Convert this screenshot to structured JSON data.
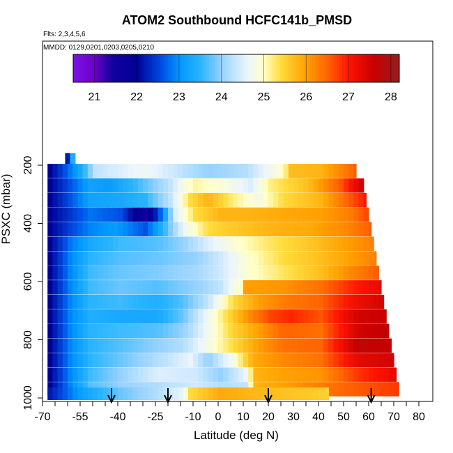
{
  "chart_data": {
    "type": "heatmap",
    "title": "ATOM2 Southbound HCFC141b_PMSD",
    "subtitle_flights": "Flts: 2,3,4,5,6",
    "subtitle_dates": "MMDD: 0129,0201,0203,0205,0210",
    "xlabel": "Latitude (deg N)",
    "ylabel": "PSXC (mbar)",
    "xlim": [
      -70,
      80
    ],
    "ylim": [
      1000,
      0
    ],
    "x_tick_labels": [
      "-70",
      "-55",
      "-40",
      "-25",
      "-10",
      "0",
      "10",
      "20",
      "30",
      "40",
      "50",
      "60",
      "70",
      "80"
    ],
    "x_tick_values": [
      -70,
      -55,
      -40,
      -25,
      -10,
      0,
      10,
      20,
      30,
      40,
      50,
      60,
      70,
      80
    ],
    "y_tick_values": [
      200,
      400,
      600,
      800,
      1000
    ],
    "y_tick_labels": [
      "200",
      "400",
      "600",
      "800",
      "1000"
    ],
    "colorbar": {
      "range": [
        20.5,
        28.2
      ],
      "tick_values": [
        21,
        22,
        23,
        24,
        25,
        26,
        27,
        28
      ],
      "tick_labels": [
        "21",
        "22",
        "23",
        "24",
        "25",
        "26",
        "27",
        "28"
      ],
      "colors": [
        "#6a0dd6",
        "#00008b",
        "#1e90ff",
        "#ffffff",
        "#ffd700",
        "#ff8c00",
        "#ff0000",
        "#8b1a1a"
      ]
    },
    "profile_latitudes": [
      -42.5,
      -20,
      20,
      61
    ],
    "layers": [
      {
        "p": 180,
        "x0": -61,
        "x1": -57,
        "segs": [
          [
            -61,
            22.2
          ],
          [
            -59,
            23.4
          ],
          [
            -57,
            24.8
          ]
        ]
      },
      {
        "p": 220,
        "x0": -68,
        "x1": 55,
        "segs": [
          [
            -68,
            22.0
          ],
          [
            -62,
            22.6
          ],
          [
            -55,
            23.4
          ],
          [
            -50,
            24.3
          ],
          [
            -40,
            24.5
          ],
          [
            -30,
            24.7
          ],
          [
            -16,
            24.3
          ],
          [
            -5,
            24.0
          ],
          [
            10,
            24.2
          ],
          [
            25,
            25.0
          ],
          [
            28,
            25.7
          ],
          [
            40,
            25.8
          ],
          [
            55,
            26.6
          ]
        ]
      },
      {
        "p": 270,
        "x0": -68,
        "x1": 58,
        "segs": [
          [
            -68,
            22.0
          ],
          [
            -60,
            22.6
          ],
          [
            -52,
            23.2
          ],
          [
            -45,
            23.1
          ],
          [
            -35,
            23.5
          ],
          [
            -20,
            24.3
          ],
          [
            -15,
            24.8
          ],
          [
            -10,
            25.1
          ],
          [
            0,
            24.9
          ],
          [
            12,
            24.5
          ],
          [
            20,
            25.2
          ],
          [
            35,
            25.7
          ],
          [
            48,
            26.6
          ],
          [
            56,
            27.5
          ]
        ]
      },
      {
        "p": 320,
        "x0": -68,
        "x1": 59,
        "segs": [
          [
            -68,
            22.0
          ],
          [
            -60,
            22.6
          ],
          [
            -52,
            23.2
          ],
          [
            -40,
            23.3
          ],
          [
            -30,
            23.5
          ],
          [
            -20,
            24.3
          ],
          [
            -12,
            25.4
          ],
          [
            -5,
            25.8
          ],
          [
            5,
            25.2
          ],
          [
            15,
            24.8
          ],
          [
            25,
            25.4
          ],
          [
            40,
            25.8
          ],
          [
            52,
            26.6
          ],
          [
            58,
            27.0
          ]
        ]
      },
      {
        "p": 370,
        "x0": -68,
        "x1": 60,
        "segs": [
          [
            -68,
            22.0
          ],
          [
            -60,
            22.4
          ],
          [
            -52,
            22.8
          ],
          [
            -40,
            22.6
          ],
          [
            -30,
            21.5
          ],
          [
            -25,
            22.4
          ],
          [
            -18,
            24.5
          ],
          [
            -10,
            25.4
          ],
          [
            0,
            25.8
          ],
          [
            10,
            25.8
          ],
          [
            25,
            25.9
          ],
          [
            40,
            26.0
          ],
          [
            52,
            26.3
          ],
          [
            60,
            26.8
          ]
        ]
      },
      {
        "p": 420,
        "x0": -68,
        "x1": 61,
        "segs": [
          [
            -68,
            22.0
          ],
          [
            -60,
            22.5
          ],
          [
            -52,
            22.9
          ],
          [
            -42,
            23.1
          ],
          [
            -30,
            22.6
          ],
          [
            -25,
            23.2
          ],
          [
            -15,
            24.6
          ],
          [
            -5,
            25.4
          ],
          [
            5,
            25.6
          ],
          [
            20,
            25.8
          ],
          [
            35,
            25.9
          ],
          [
            50,
            26.2
          ],
          [
            61,
            26.6
          ]
        ]
      },
      {
        "p": 470,
        "x0": -68,
        "x1": 62,
        "segs": [
          [
            -68,
            22.0
          ],
          [
            -60,
            22.8
          ],
          [
            -52,
            23.3
          ],
          [
            -40,
            23.6
          ],
          [
            -25,
            23.7
          ],
          [
            -15,
            24.0
          ],
          [
            -5,
            24.5
          ],
          [
            5,
            24.9
          ],
          [
            20,
            25.3
          ],
          [
            35,
            25.6
          ],
          [
            50,
            26.0
          ],
          [
            62,
            26.3
          ]
        ]
      },
      {
        "p": 520,
        "x0": -68,
        "x1": 63,
        "segs": [
          [
            -68,
            22.0
          ],
          [
            -60,
            22.9
          ],
          [
            -52,
            23.5
          ],
          [
            -40,
            23.7
          ],
          [
            -25,
            23.8
          ],
          [
            -10,
            24.0
          ],
          [
            0,
            24.4
          ],
          [
            10,
            24.9
          ],
          [
            25,
            25.4
          ],
          [
            40,
            25.7
          ],
          [
            52,
            26.0
          ],
          [
            63,
            26.3
          ]
        ]
      },
      {
        "p": 570,
        "x0": -68,
        "x1": 64,
        "segs": [
          [
            -68,
            22.0
          ],
          [
            -60,
            22.9
          ],
          [
            -52,
            23.6
          ],
          [
            -40,
            23.8
          ],
          [
            -25,
            23.9
          ],
          [
            -10,
            24.1
          ],
          [
            0,
            24.4
          ],
          [
            10,
            24.9
          ],
          [
            25,
            25.3
          ],
          [
            40,
            25.7
          ],
          [
            52,
            26.2
          ],
          [
            64,
            26.6
          ]
        ]
      },
      {
        "p": 620,
        "x0": -68,
        "x1": 65,
        "segs": [
          [
            -68,
            22.0
          ],
          [
            -60,
            22.9
          ],
          [
            -52,
            23.6
          ],
          [
            -40,
            23.8
          ],
          [
            -25,
            23.7
          ],
          [
            -10,
            24.0
          ],
          [
            0,
            24.3
          ],
          [
            8,
            25.0
          ],
          [
            10,
            26.0
          ],
          [
            25,
            26.1
          ],
          [
            40,
            26.4
          ],
          [
            55,
            27.0
          ],
          [
            65,
            27.3
          ]
        ]
      },
      {
        "p": 670,
        "x0": -68,
        "x1": 66,
        "segs": [
          [
            -68,
            22.0
          ],
          [
            -60,
            22.9
          ],
          [
            -52,
            23.5
          ],
          [
            -40,
            23.6
          ],
          [
            -25,
            23.4
          ],
          [
            -15,
            23.7
          ],
          [
            -5,
            24.3
          ],
          [
            5,
            25.4
          ],
          [
            15,
            26.0
          ],
          [
            25,
            26.3
          ],
          [
            40,
            26.5
          ],
          [
            55,
            27.2
          ],
          [
            66,
            27.5
          ]
        ]
      },
      {
        "p": 720,
        "x0": -68,
        "x1": 67,
        "segs": [
          [
            -68,
            22.0
          ],
          [
            -60,
            22.9
          ],
          [
            -52,
            23.4
          ],
          [
            -40,
            23.3
          ],
          [
            -25,
            23.3
          ],
          [
            -15,
            23.8
          ],
          [
            -5,
            24.7
          ],
          [
            5,
            25.6
          ],
          [
            12,
            26.2
          ],
          [
            20,
            26.7
          ],
          [
            28,
            26.9
          ],
          [
            40,
            26.6
          ],
          [
            55,
            27.5
          ],
          [
            67,
            27.6
          ]
        ]
      },
      {
        "p": 770,
        "x0": -68,
        "x1": 68,
        "segs": [
          [
            -68,
            22.0
          ],
          [
            -60,
            22.9
          ],
          [
            -52,
            23.5
          ],
          [
            -40,
            23.6
          ],
          [
            -25,
            23.7
          ],
          [
            -15,
            24.0
          ],
          [
            -5,
            24.7
          ],
          [
            5,
            25.5
          ],
          [
            15,
            26.0
          ],
          [
            25,
            26.5
          ],
          [
            40,
            26.4
          ],
          [
            55,
            27.5
          ],
          [
            68,
            27.7
          ]
        ]
      },
      {
        "p": 820,
        "x0": -68,
        "x1": 69,
        "segs": [
          [
            -68,
            22.0
          ],
          [
            -60,
            22.9
          ],
          [
            -52,
            23.5
          ],
          [
            -40,
            23.7
          ],
          [
            -25,
            24.0
          ],
          [
            -15,
            24.2
          ],
          [
            -5,
            24.8
          ],
          [
            5,
            25.4
          ],
          [
            15,
            26.0
          ],
          [
            25,
            26.4
          ],
          [
            40,
            26.5
          ],
          [
            55,
            27.7
          ],
          [
            69,
            27.6
          ]
        ]
      },
      {
        "p": 870,
        "x0": -68,
        "x1": 70,
        "segs": [
          [
            -68,
            22.0
          ],
          [
            -60,
            22.9
          ],
          [
            -52,
            23.5
          ],
          [
            -40,
            23.8
          ],
          [
            -25,
            24.2
          ],
          [
            -12,
            24.6
          ],
          [
            -5,
            24.0
          ],
          [
            5,
            24.8
          ],
          [
            13,
            25.9
          ],
          [
            25,
            26.2
          ],
          [
            40,
            26.4
          ],
          [
            55,
            27.3
          ],
          [
            70,
            27.5
          ]
        ]
      },
      {
        "p": 920,
        "x0": -68,
        "x1": 71,
        "segs": [
          [
            -68,
            22.0
          ],
          [
            -60,
            22.9
          ],
          [
            -52,
            23.6
          ],
          [
            -40,
            24.0
          ],
          [
            -25,
            24.5
          ],
          [
            -10,
            24.4
          ],
          [
            0,
            24.0
          ],
          [
            10,
            24.6
          ],
          [
            14,
            25.8
          ],
          [
            25,
            26.0
          ],
          [
            40,
            26.1
          ],
          [
            55,
            26.8
          ],
          [
            71,
            27.3
          ]
        ]
      },
      {
        "p": 970,
        "x0": -68,
        "x1": 72,
        "segs": [
          [
            -68,
            22.0
          ],
          [
            -60,
            22.9
          ],
          [
            -52,
            23.7
          ],
          [
            -40,
            24.0
          ],
          [
            -25,
            24.2
          ],
          [
            -10,
            24.4
          ],
          [
            0,
            24.2
          ],
          [
            10,
            24.3
          ],
          [
            14,
            25.8
          ],
          [
            30,
            26.1
          ],
          [
            50,
            26.5
          ],
          [
            72,
            26.8
          ]
        ]
      },
      {
        "p": 1000,
        "x0": -68,
        "x1": 44,
        "segs": [
          [
            -68,
            22.2
          ],
          [
            -55,
            23.2
          ],
          [
            -40,
            23.8
          ],
          [
            -25,
            24.2
          ],
          [
            -15,
            24.6
          ],
          [
            -12,
            25.4
          ],
          [
            0,
            25.9
          ],
          [
            20,
            25.7
          ],
          [
            35,
            25.6
          ],
          [
            44,
            25.5
          ]
        ]
      }
    ]
  }
}
